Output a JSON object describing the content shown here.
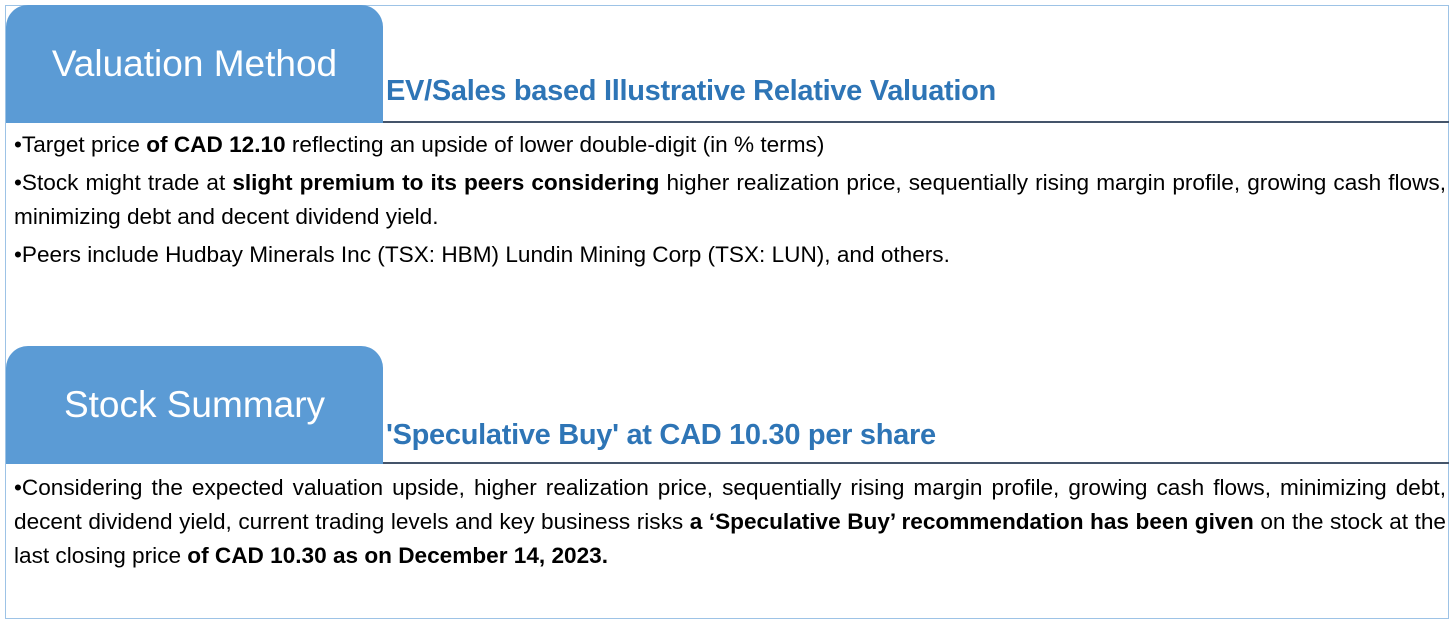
{
  "valuation": {
    "tab_label": "Valuation Method",
    "subtitle": "EV/Sales based Illustrative Relative Valuation",
    "bullets": [
      {
        "parts": [
          "•Target price ",
          "of CAD 12.10",
          " reflecting an upside of lower double-digit (in % terms)"
        ]
      },
      {
        "parts": [
          "•Stock might trade at ",
          "slight premium to its peers considering",
          "  higher realization price, sequentially rising margin profile, growing cash flows, minimizing debt and decent dividend yield."
        ]
      },
      {
        "parts": [
          "•Peers include Hudbay Minerals Inc (TSX: HBM) Lundin Mining Corp (TSX: LUN), and others."
        ]
      }
    ]
  },
  "summary": {
    "tab_label": "Stock Summary",
    "subtitle": "'Speculative Buy' at CAD 10.30 per share",
    "bullet": {
      "parts": [
        "•Considering the expected valuation upside, higher realization price, sequentially rising margin profile, growing cash flows, minimizing debt, decent dividend yield, current trading levels and key business risks ",
        "a ‘Speculative Buy’ recommendation has been given",
        " on the stock at the last closing price ",
        "of CAD 10.30 as on December 14, 2023."
      ]
    }
  },
  "colors": {
    "tab": "#5b9bd5",
    "subtitle": "#2e75b6",
    "rule": "#44546a",
    "border": "#9dc3e6"
  }
}
